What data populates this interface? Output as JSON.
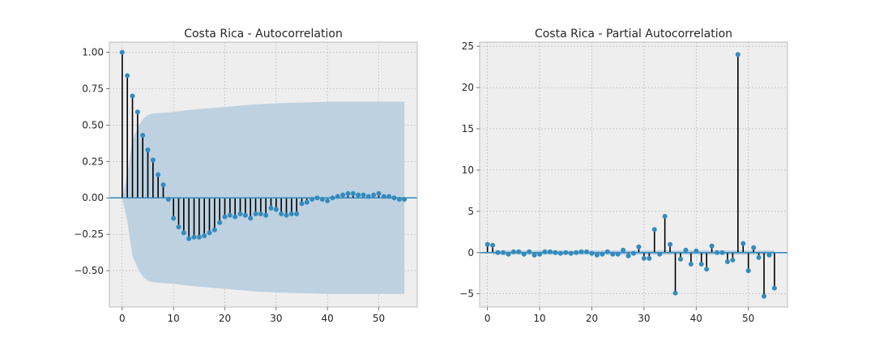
{
  "chart_data": [
    {
      "type": "stem",
      "title": "Costa Rica - Autocorrelation",
      "xlabel": "",
      "ylabel": "",
      "xlim": [
        -2.5,
        57.5
      ],
      "ylim": [
        -0.75,
        1.07
      ],
      "xticks": [
        0,
        10,
        20,
        30,
        40,
        50
      ],
      "yticks": [
        -0.5,
        -0.25,
        0.0,
        0.25,
        0.5,
        0.75,
        1.0
      ],
      "ytick_labels": [
        "−0.50",
        "−0.25",
        "0.00",
        "0.25",
        "0.50",
        "0.75",
        "1.00"
      ],
      "grid": true,
      "lags": [
        0,
        1,
        2,
        3,
        4,
        5,
        6,
        7,
        8,
        9,
        10,
        11,
        12,
        13,
        14,
        15,
        16,
        17,
        18,
        19,
        20,
        21,
        22,
        23,
        24,
        25,
        26,
        27,
        28,
        29,
        30,
        31,
        32,
        33,
        34,
        35,
        36,
        37,
        38,
        39,
        40,
        41,
        42,
        43,
        44,
        45,
        46,
        47,
        48,
        49,
        50,
        51,
        52,
        53,
        54,
        55
      ],
      "values": [
        1.0,
        0.84,
        0.7,
        0.59,
        0.43,
        0.33,
        0.26,
        0.16,
        0.09,
        -0.01,
        -0.14,
        -0.2,
        -0.24,
        -0.28,
        -0.27,
        -0.27,
        -0.26,
        -0.24,
        -0.22,
        -0.17,
        -0.13,
        -0.12,
        -0.13,
        -0.11,
        -0.12,
        -0.14,
        -0.11,
        -0.11,
        -0.12,
        -0.07,
        -0.08,
        -0.11,
        -0.12,
        -0.11,
        -0.11,
        -0.04,
        -0.03,
        -0.01,
        0.0,
        -0.01,
        -0.02,
        0.0,
        0.01,
        0.02,
        0.03,
        0.03,
        0.02,
        0.02,
        0.01,
        0.02,
        0.03,
        0.01,
        0.01,
        0.0,
        -0.01,
        -0.01
      ],
      "confidence_band": {
        "lags": [
          0,
          1,
          2,
          3,
          4,
          5,
          6,
          8,
          10,
          12,
          15,
          20,
          25,
          30,
          35,
          40,
          45,
          50,
          55
        ],
        "upper": [
          0,
          0.16,
          0.4,
          0.48,
          0.54,
          0.57,
          0.58,
          0.585,
          0.59,
          0.6,
          0.61,
          0.625,
          0.64,
          0.65,
          0.655,
          0.66,
          0.66,
          0.66,
          0.66
        ]
      },
      "colors": {
        "marker": "#348abd",
        "stem": "#000000",
        "band": "#b9cfde",
        "zero_line": "#348abd",
        "background": "#eeeeee"
      }
    },
    {
      "type": "stem",
      "title": "Costa Rica - Partial Autocorrelation",
      "xlabel": "",
      "ylabel": "",
      "xlim": [
        -1.5,
        57.5
      ],
      "ylim": [
        -6.6,
        25.5
      ],
      "xticks": [
        0,
        10,
        20,
        30,
        40,
        50
      ],
      "yticks": [
        -5,
        0,
        5,
        10,
        15,
        20,
        25
      ],
      "ytick_labels": [
        "−5",
        "0",
        "5",
        "10",
        "15",
        "20",
        "25"
      ],
      "grid": true,
      "lags": [
        0,
        1,
        2,
        3,
        4,
        5,
        6,
        7,
        8,
        9,
        10,
        11,
        12,
        13,
        14,
        15,
        16,
        17,
        18,
        19,
        20,
        21,
        22,
        23,
        24,
        25,
        26,
        27,
        28,
        29,
        30,
        31,
        32,
        33,
        34,
        35,
        36,
        37,
        38,
        39,
        40,
        41,
        42,
        43,
        44,
        45,
        46,
        47,
        48,
        49,
        50,
        51,
        52,
        53,
        54,
        55
      ],
      "values": [
        1.0,
        0.9,
        0.0,
        0.0,
        -0.2,
        0.1,
        0.1,
        -0.2,
        0.1,
        -0.3,
        -0.2,
        0.1,
        0.1,
        0.0,
        -0.1,
        0.0,
        -0.1,
        0.0,
        0.1,
        0.1,
        -0.1,
        -0.3,
        -0.2,
        0.1,
        -0.2,
        -0.2,
        0.3,
        -0.4,
        -0.1,
        0.7,
        -0.7,
        -0.7,
        2.8,
        -0.2,
        4.4,
        1.0,
        -4.9,
        -0.8,
        0.3,
        -1.4,
        0.2,
        -1.4,
        -2.0,
        0.8,
        0.0,
        0.0,
        -1.1,
        -0.9,
        24.0,
        1.1,
        -2.2,
        0.6,
        -0.6,
        -5.3,
        -0.3,
        -4.3
      ],
      "confidence_band": {
        "lags": [
          1,
          55
        ],
        "upper": [
          0.27,
          0.27
        ]
      },
      "colors": {
        "marker": "#348abd",
        "stem": "#000000",
        "band": "#b9cfde",
        "zero_line": "#348abd",
        "background": "#eeeeee"
      }
    }
  ]
}
